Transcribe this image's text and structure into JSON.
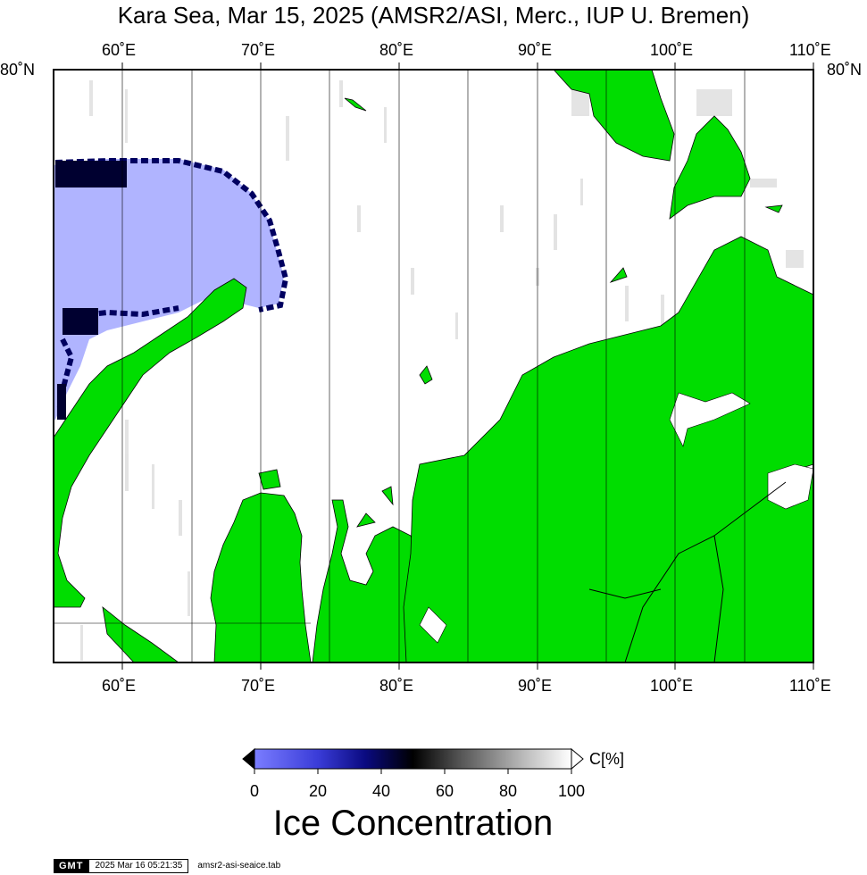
{
  "map": {
    "title": "Kara Sea, Mar 15, 2025 (AMSR2/ASI, Merc., IUP U. Bremen)",
    "lon_labels": [
      "60˚E",
      "70˚E",
      "80˚E",
      "90˚E",
      "100˚E",
      "110˚E"
    ],
    "lat_label": "80˚N",
    "colors": {
      "land": "#00dd00",
      "open_water_ice_0": "#b0b4ff",
      "ice_low": "#5b5ff0",
      "ice_mid": "#000045",
      "ice_high": "#ffffff",
      "grid": "#000000"
    }
  },
  "colorbar": {
    "unit_label": "C[%]",
    "ticks": [
      "0",
      "20",
      "40",
      "60",
      "80",
      "100"
    ],
    "title": "Ice Concentration",
    "range": [
      0,
      100
    ]
  },
  "footer": {
    "logo": "GMT",
    "timestamp": "2025 Mar 16 05:21:35",
    "script": "amsr2-asi-seaice.tab"
  }
}
